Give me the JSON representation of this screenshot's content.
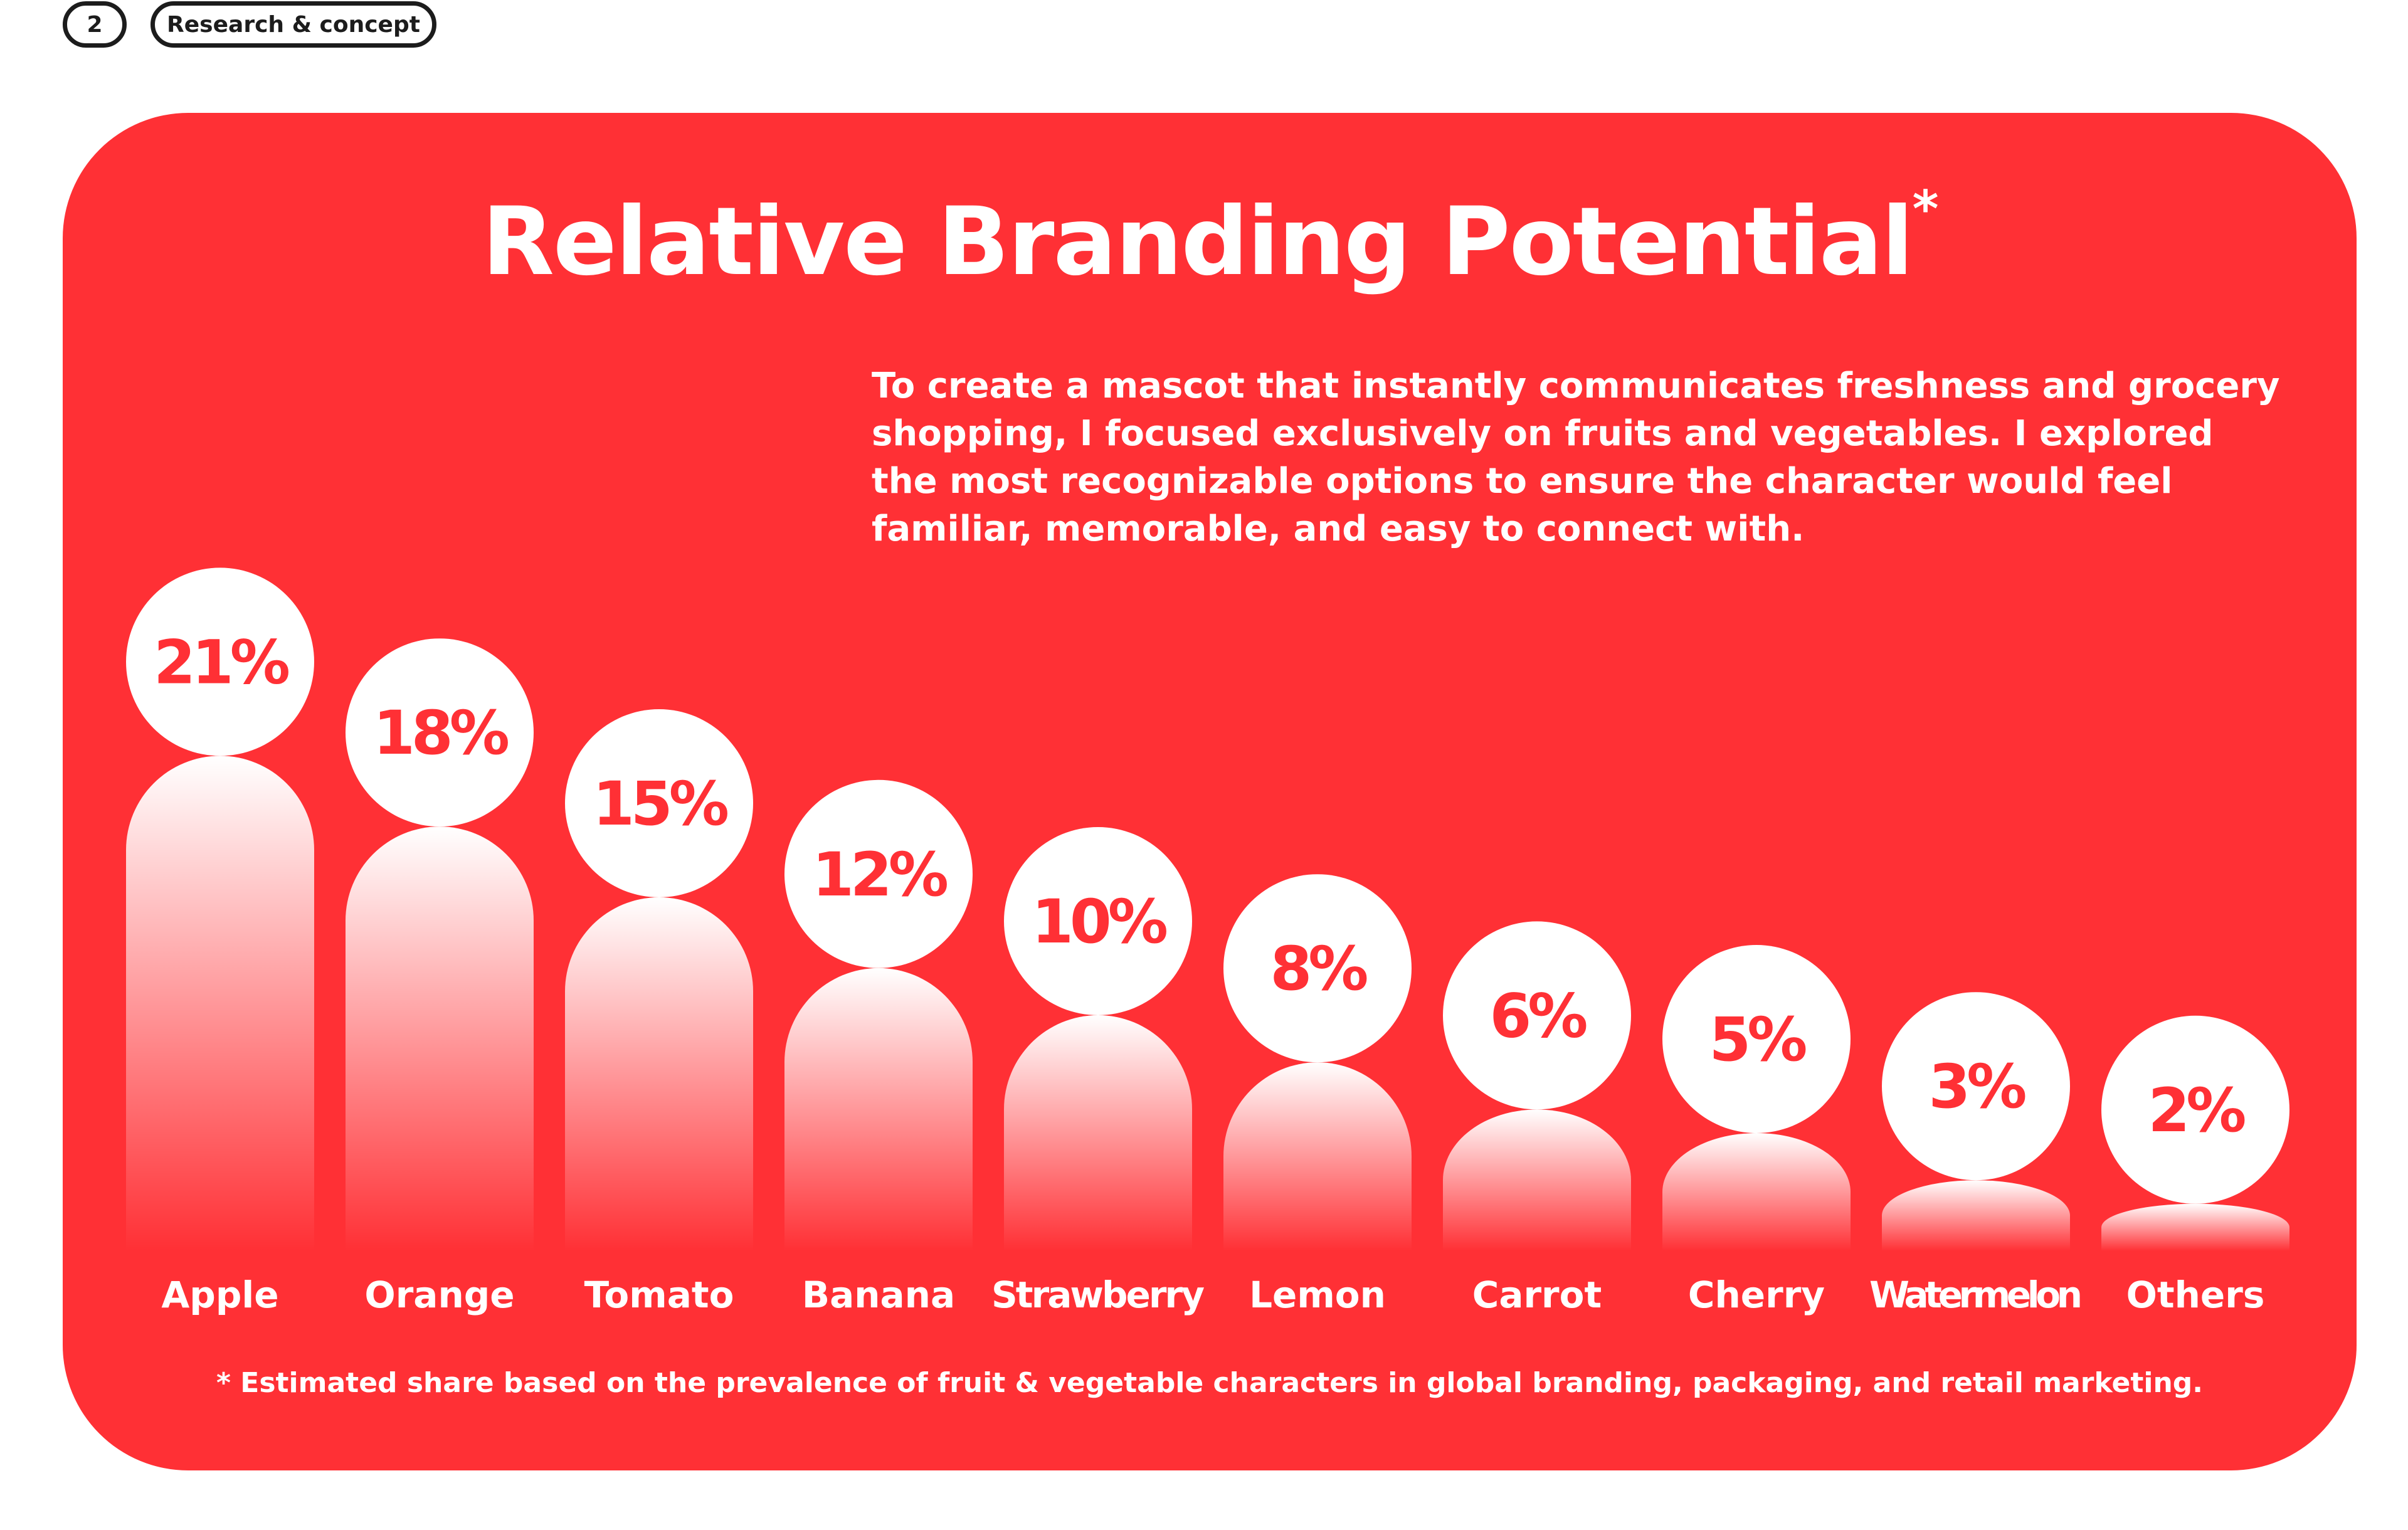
{
  "header": {
    "page_number": "2",
    "section_label": "Research & concept"
  },
  "card": {
    "title": "Relative Branding Potential",
    "title_marker": "*",
    "description": "To create a mascot that instantly communicates freshness and grocery shopping, I focused exclusively on fruits and vegetables. I explored the most recognizable options to ensure the character would feel familiar, memorable, and easy to connect with.",
    "footnote": "* Estimated share based on the prevalence of fruit & vegetable characters in global branding, packaging, and retail marketing."
  },
  "colors": {
    "background": "#ffffff",
    "card": "#ff3035",
    "text": "#ffffff",
    "outline": "#1c1c1c"
  },
  "chart_data": {
    "type": "bar",
    "title": "Relative Branding Potential",
    "categories": [
      "Apple",
      "Orange",
      "Tomato",
      "Banana",
      "Strawberry",
      "Lemon",
      "Carrot",
      "Cherry",
      "Watermelon",
      "Others"
    ],
    "values": [
      21,
      18,
      15,
      12,
      10,
      8,
      6,
      5,
      3,
      2
    ],
    "value_labels": [
      "21%",
      "18%",
      "15%",
      "12%",
      "10%",
      "8%",
      "6%",
      "5%",
      "3%",
      "2%"
    ],
    "unit": "%",
    "xlabel": "",
    "ylabel": "",
    "grid": false,
    "legend": "none"
  }
}
